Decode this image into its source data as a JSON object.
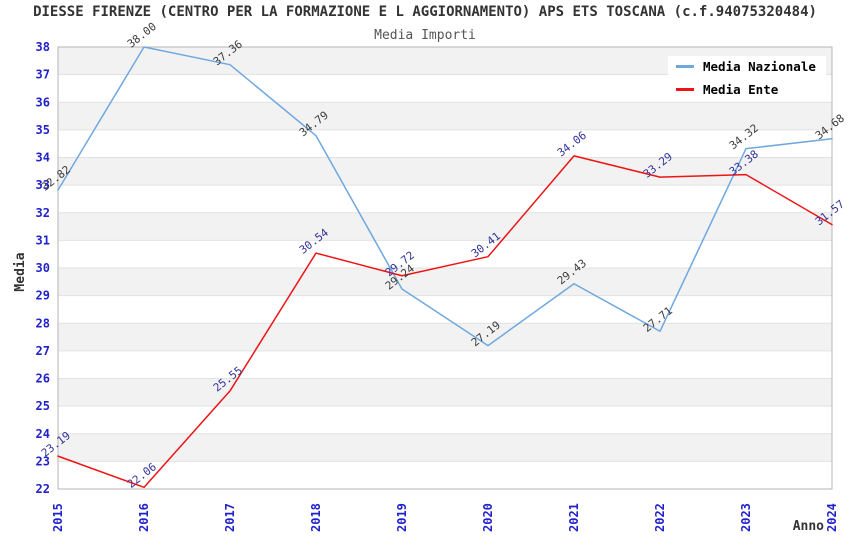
{
  "title": "DIESSE FIRENZE (CENTRO PER LA FORMAZIONE E L AGGIORNAMENTO) APS ETS TOSCANA (c.f.94075320484)",
  "subtitle": "Media Importi",
  "axes": {
    "x_label": "Anno",
    "y_label": "Media"
  },
  "colors": {
    "band": "#f2f2f3",
    "grid": "#e2e2e2",
    "border": "#b5b5b5",
    "tick_text": "#2222cc",
    "national_line": "#6fa8e0",
    "entity_line": "#ee1414",
    "national_label_text": "#3c3c3c",
    "entity_label_text": "#333399"
  },
  "legend": {
    "items": [
      {
        "label": "Media Nazionale",
        "color": "#6fa8e0"
      },
      {
        "label": "Media Ente",
        "color": "#ee1414"
      }
    ]
  },
  "chart_data": {
    "type": "line",
    "title": "Media Importi",
    "xlabel": "Anno",
    "ylabel": "Media",
    "categories": [
      "2015",
      "2016",
      "2017",
      "2018",
      "2019",
      "2020",
      "2021",
      "2022",
      "2023",
      "2024"
    ],
    "series": [
      {
        "name": "Media Nazionale",
        "color": "#6fa8e0",
        "label_color": "#3c3c3c",
        "values": [
          32.82,
          38.0,
          37.36,
          34.79,
          29.24,
          27.19,
          29.43,
          27.71,
          34.32,
          34.68
        ]
      },
      {
        "name": "Media Ente",
        "color": "#ee1414",
        "label_color": "#333399",
        "values": [
          23.19,
          22.06,
          25.55,
          30.54,
          29.72,
          30.41,
          34.06,
          33.29,
          33.38,
          31.57
        ]
      }
    ],
    "ylim": [
      22,
      38
    ],
    "yticks": [
      22,
      23,
      24,
      25,
      26,
      27,
      28,
      29,
      30,
      31,
      32,
      33,
      34,
      35,
      36,
      37,
      38
    ],
    "grid": "horizontal gridlines with alternating shaded bands",
    "legend_position": "top-right inside plot",
    "point_labels": "each point labeled with value, rotated ~40deg"
  }
}
